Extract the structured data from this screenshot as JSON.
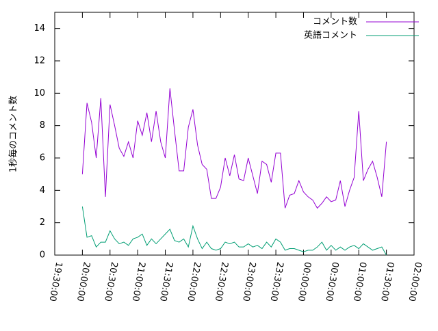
{
  "chart_data": {
    "type": "line",
    "y_label": "1秒毎のコメント数",
    "x": [
      "20:00:00",
      "20:05:00",
      "20:10:00",
      "20:15:00",
      "20:20:00",
      "20:25:00",
      "20:30:00",
      "20:35:00",
      "20:40:00",
      "20:45:00",
      "20:50:00",
      "20:55:00",
      "21:00:00",
      "21:05:00",
      "21:10:00",
      "21:15:00",
      "21:20:00",
      "21:25:00",
      "21:30:00",
      "21:35:00",
      "21:40:00",
      "21:45:00",
      "21:50:00",
      "21:55:00",
      "22:00:00",
      "22:05:00",
      "22:10:00",
      "22:15:00",
      "22:20:00",
      "22:25:00",
      "22:30:00",
      "22:35:00",
      "22:40:00",
      "22:45:00",
      "22:50:00",
      "22:55:00",
      "23:00:00",
      "23:05:00",
      "23:10:00",
      "23:15:00",
      "23:20:00",
      "23:25:00",
      "23:30:00",
      "23:35:00",
      "23:40:00",
      "23:45:00",
      "23:50:00",
      "23:55:00",
      "00:00:00",
      "00:05:00",
      "00:10:00",
      "00:15:00",
      "00:20:00",
      "00:25:00",
      "00:30:00",
      "00:35:00",
      "00:40:00",
      "00:45:00",
      "00:50:00",
      "00:55:00",
      "01:00:00",
      "01:05:00",
      "01:10:00",
      "01:15:00",
      "01:20:00",
      "01:25:00",
      "01:30:00"
    ],
    "series": [
      {
        "name": "コメント数",
        "color": "#9400d3",
        "values": [
          5.0,
          9.4,
          8.2,
          6.0,
          9.7,
          3.6,
          9.3,
          8.0,
          6.6,
          6.1,
          7.0,
          6.0,
          8.3,
          7.4,
          8.8,
          7.0,
          8.9,
          7.0,
          6.0,
          10.3,
          7.7,
          5.2,
          5.2,
          7.9,
          9.0,
          6.8,
          5.6,
          5.3,
          3.5,
          3.5,
          4.2,
          6.0,
          4.9,
          6.2,
          4.7,
          4.6,
          6.0,
          4.9,
          3.8,
          5.8,
          5.6,
          4.5,
          6.3,
          6.3,
          2.9,
          3.7,
          3.8,
          4.6,
          3.9,
          3.6,
          3.4,
          2.9,
          3.2,
          3.6,
          3.3,
          3.4,
          4.6,
          3.0,
          4.0,
          4.8,
          8.9,
          4.6,
          5.3,
          5.8,
          4.8,
          3.6,
          7.0
        ]
      },
      {
        "name": "英語コメント",
        "color": "#009e73",
        "values": [
          3.0,
          1.1,
          1.2,
          0.5,
          0.8,
          0.8,
          1.5,
          1.0,
          0.7,
          0.8,
          0.6,
          1.0,
          1.1,
          1.3,
          0.6,
          1.0,
          0.7,
          1.0,
          1.3,
          1.6,
          0.9,
          0.8,
          1.0,
          0.5,
          1.8,
          1.0,
          0.4,
          0.8,
          0.4,
          0.3,
          0.4,
          0.8,
          0.7,
          0.8,
          0.5,
          0.5,
          0.7,
          0.5,
          0.6,
          0.4,
          0.8,
          0.5,
          1.0,
          0.8,
          0.3,
          0.4,
          0.4,
          0.3,
          0.2,
          0.3,
          0.3,
          0.5,
          0.8,
          0.3,
          0.6,
          0.3,
          0.5,
          0.3,
          0.5,
          0.6,
          0.4,
          0.7,
          0.5,
          0.3,
          0.4,
          0.5,
          0.0
        ]
      }
    ],
    "xlim": [
      "19:30:00",
      "02:00:00"
    ],
    "xticks": [
      "19:30:00",
      "20:00:00",
      "20:30:00",
      "21:00:00",
      "21:30:00",
      "22:00:00",
      "22:30:00",
      "23:00:00",
      "23:30:00",
      "00:00:00",
      "00:30:00",
      "01:00:00",
      "01:30:00",
      "02:00:00"
    ],
    "ylim": [
      0,
      15
    ],
    "yticks": [
      0,
      2,
      4,
      6,
      8,
      10,
      12,
      14
    ],
    "legend": "top-right"
  }
}
